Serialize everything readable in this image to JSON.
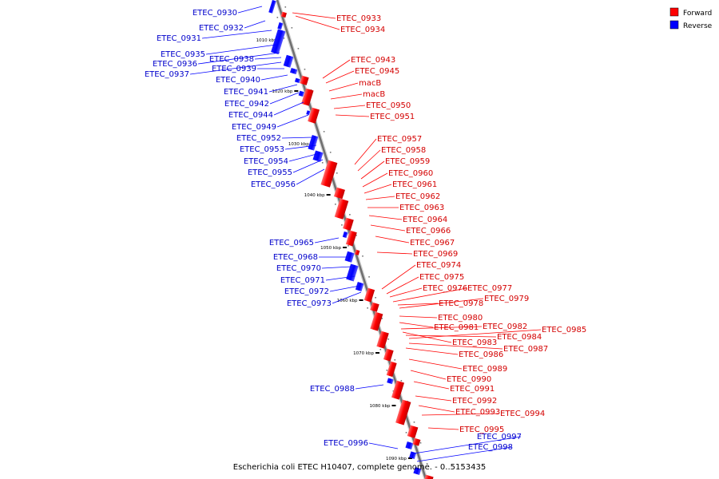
{
  "legend": {
    "forward_label": "Forward",
    "reverse_label": "Reverse",
    "forward_color": "#ff0000",
    "reverse_color": "#0000ff"
  },
  "caption": "Escherichia coli ETEC H10407, complete genome. - 0..5153435",
  "ticks": [
    "1010 kbp",
    "1020 kbp",
    "1030 kbp",
    "1040 kbp",
    "1050 kbp",
    "1060 kbp",
    "1070 kbp",
    "1080 kbp",
    "1090 kbp"
  ],
  "reverse_genes": [
    "ETEC_0930",
    "ETEC_0932",
    "ETEC_0931",
    "ETEC_0935",
    "ETEC_0936",
    "ETEC_0938",
    "ETEC_0937",
    "ETEC_0939",
    "ETEC_0940",
    "ETEC_0941",
    "ETEC_0942",
    "ETEC_0944",
    "ETEC_0949",
    "ETEC_0952",
    "ETEC_0953",
    "ETEC_0954",
    "ETEC_0955",
    "ETEC_0956",
    "ETEC_0965",
    "ETEC_0968",
    "ETEC_0970",
    "ETEC_0971",
    "ETEC_0972",
    "ETEC_0973",
    "ETEC_0988",
    "ETEC_0996",
    "ETEC_0997",
    "ETEC_0998"
  ],
  "forward_genes": [
    "ETEC_0933",
    "ETEC_0934",
    "ETEC_0943",
    "ETEC_0945",
    "macB",
    "macB",
    "ETEC_0950",
    "ETEC_0951",
    "ETEC_0957",
    "ETEC_0958",
    "ETEC_0959",
    "ETEC_0960",
    "ETEC_0961",
    "ETEC_0962",
    "ETEC_0963",
    "ETEC_0964",
    "ETEC_0966",
    "ETEC_0967",
    "ETEC_0969",
    "ETEC_0974",
    "ETEC_0975",
    "ETEC_0976",
    "ETEC_0977",
    "ETEC_0979",
    "ETEC_0978",
    "ETEC_0980",
    "ETEC_0981",
    "ETEC_0982",
    "ETEC_0985",
    "ETEC_0984",
    "ETEC_0983",
    "ETEC_0987",
    "ETEC_0986",
    "ETEC_0989",
    "ETEC_0990",
    "ETEC_0991",
    "ETEC_0992",
    "ETEC_0993",
    "ETEC_0994",
    "ETEC_0995"
  ]
}
